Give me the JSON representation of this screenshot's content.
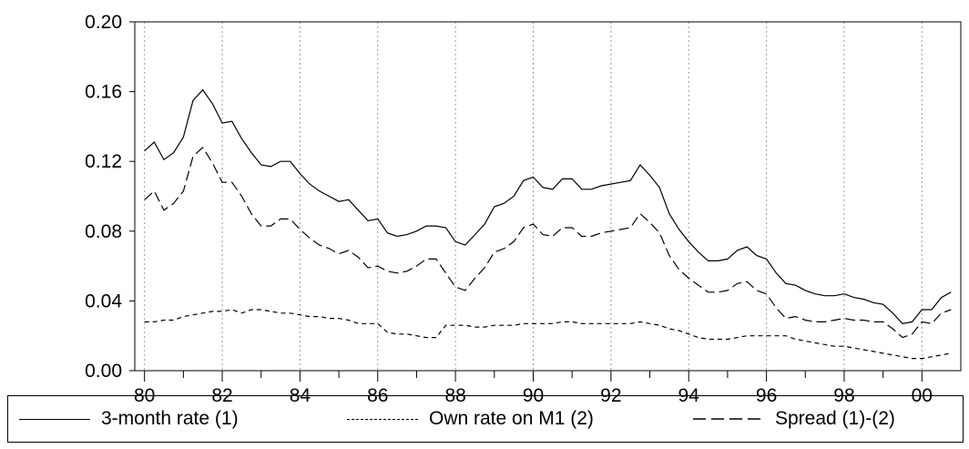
{
  "chart_data": {
    "type": "line",
    "title": "",
    "xlabel": "",
    "ylabel": "",
    "x_start": 1980.0,
    "x_step": 0.25,
    "xlim": [
      1979.75,
      2001.0
    ],
    "ylim": [
      0.0,
      0.2
    ],
    "y_ticks": [
      "0.00",
      "0.04",
      "0.08",
      "0.12",
      "0.16",
      "0.20"
    ],
    "y_tick_values": [
      0.0,
      0.04,
      0.08,
      0.12,
      0.16,
      0.2
    ],
    "x_ticks": [
      "80",
      "82",
      "84",
      "86",
      "88",
      "90",
      "92",
      "94",
      "96",
      "98",
      "00"
    ],
    "x_tick_values": [
      1980,
      1982,
      1984,
      1986,
      1988,
      1990,
      1992,
      1994,
      1996,
      1998,
      2000
    ],
    "grid": "vertical-dotted",
    "legend_position": "bottom",
    "series": [
      {
        "name": "3-month rate (1)",
        "style": "solid",
        "values": [
          0.126,
          0.131,
          0.121,
          0.125,
          0.134,
          0.155,
          0.161,
          0.153,
          0.142,
          0.143,
          0.133,
          0.125,
          0.118,
          0.117,
          0.12,
          0.12,
          0.113,
          0.107,
          0.103,
          0.1,
          0.097,
          0.098,
          0.092,
          0.086,
          0.087,
          0.079,
          0.077,
          0.078,
          0.08,
          0.083,
          0.083,
          0.082,
          0.074,
          0.072,
          0.078,
          0.084,
          0.094,
          0.096,
          0.1,
          0.109,
          0.111,
          0.105,
          0.104,
          0.11,
          0.11,
          0.104,
          0.104,
          0.106,
          0.107,
          0.108,
          0.109,
          0.118,
          0.112,
          0.105,
          0.09,
          0.081,
          0.074,
          0.068,
          0.063,
          0.063,
          0.064,
          0.069,
          0.071,
          0.066,
          0.064,
          0.056,
          0.05,
          0.049,
          0.046,
          0.044,
          0.043,
          0.043,
          0.044,
          0.042,
          0.041,
          0.039,
          0.038,
          0.033,
          0.027,
          0.028,
          0.035,
          0.035,
          0.042,
          0.045
        ]
      },
      {
        "name": "Own rate on M1 (2)",
        "style": "short-dash",
        "values": [
          0.028,
          0.028,
          0.029,
          0.029,
          0.031,
          0.032,
          0.033,
          0.034,
          0.034,
          0.035,
          0.033,
          0.035,
          0.035,
          0.034,
          0.033,
          0.033,
          0.032,
          0.031,
          0.031,
          0.03,
          0.03,
          0.029,
          0.027,
          0.027,
          0.027,
          0.022,
          0.021,
          0.021,
          0.02,
          0.019,
          0.019,
          0.026,
          0.026,
          0.026,
          0.025,
          0.025,
          0.026,
          0.026,
          0.026,
          0.027,
          0.027,
          0.027,
          0.027,
          0.028,
          0.028,
          0.027,
          0.027,
          0.027,
          0.027,
          0.027,
          0.027,
          0.028,
          0.027,
          0.026,
          0.024,
          0.023,
          0.021,
          0.019,
          0.018,
          0.018,
          0.018,
          0.019,
          0.02,
          0.02,
          0.02,
          0.02,
          0.02,
          0.018,
          0.017,
          0.016,
          0.015,
          0.014,
          0.014,
          0.013,
          0.012,
          0.011,
          0.01,
          0.009,
          0.008,
          0.007,
          0.007,
          0.008,
          0.009,
          0.01
        ]
      },
      {
        "name": "Spread (1)-(2)",
        "style": "long-dash",
        "values": [
          0.098,
          0.103,
          0.092,
          0.096,
          0.103,
          0.123,
          0.128,
          0.119,
          0.108,
          0.108,
          0.1,
          0.09,
          0.083,
          0.083,
          0.087,
          0.087,
          0.081,
          0.076,
          0.072,
          0.07,
          0.067,
          0.069,
          0.065,
          0.059,
          0.06,
          0.057,
          0.056,
          0.057,
          0.06,
          0.064,
          0.064,
          0.056,
          0.048,
          0.046,
          0.053,
          0.059,
          0.068,
          0.07,
          0.074,
          0.082,
          0.084,
          0.078,
          0.077,
          0.082,
          0.082,
          0.077,
          0.077,
          0.079,
          0.08,
          0.081,
          0.082,
          0.09,
          0.085,
          0.079,
          0.066,
          0.058,
          0.053,
          0.049,
          0.045,
          0.045,
          0.046,
          0.05,
          0.051,
          0.046,
          0.044,
          0.036,
          0.03,
          0.031,
          0.029,
          0.028,
          0.028,
          0.029,
          0.03,
          0.029,
          0.029,
          0.028,
          0.028,
          0.024,
          0.019,
          0.021,
          0.028,
          0.027,
          0.033,
          0.035
        ]
      }
    ]
  }
}
